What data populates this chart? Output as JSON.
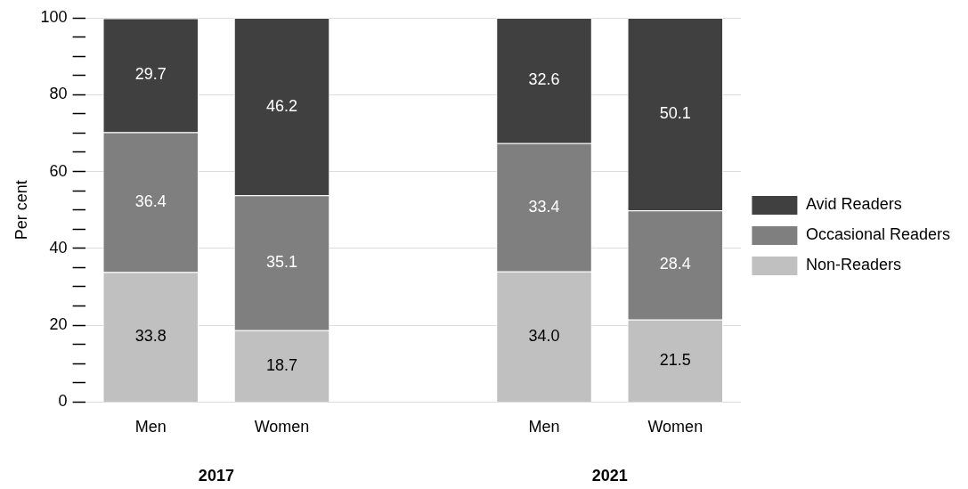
{
  "chart_data": {
    "type": "bar",
    "stacked": true,
    "ylabel": "Per cent",
    "categories": [
      "Men",
      "Women",
      null,
      "Men",
      "Women"
    ],
    "series": [
      {
        "name": "Non-Readers",
        "color": "#c0c0c0",
        "values": [
          33.8,
          18.7,
          null,
          34.0,
          21.5
        ],
        "value_labels": [
          "33.8",
          "18.7",
          null,
          "34.0",
          "21.5"
        ]
      },
      {
        "name": "Occasional Readers",
        "color": "#7f7f7f",
        "values": [
          36.4,
          35.1,
          null,
          33.4,
          28.4
        ],
        "value_labels": [
          "36.4",
          "35.1",
          null,
          "33.4",
          "28.4"
        ]
      },
      {
        "name": "Avid Readers",
        "color": "#404040",
        "values": [
          29.7,
          46.2,
          null,
          32.6,
          50.1
        ],
        "value_labels": [
          "29.7",
          "46.2",
          null,
          "32.6",
          "50.1"
        ]
      }
    ],
    "ylim": [
      0,
      100
    ],
    "yticks": [
      0,
      {
        "value": 5,
        "label": null
      },
      {
        "value": 10,
        "label": null
      },
      {
        "value": 15,
        "label": null
      },
      20,
      {
        "value": 25,
        "label": null
      },
      {
        "value": 30,
        "label": null
      },
      {
        "value": 35,
        "label": null
      },
      40,
      {
        "value": 45,
        "label": null
      },
      {
        "value": 50,
        "label": null
      },
      {
        "value": 55,
        "label": null
      },
      60,
      {
        "value": 65,
        "label": null
      },
      {
        "value": 70,
        "label": null
      },
      {
        "value": 75,
        "label": null
      },
      80,
      {
        "value": 85,
        "label": null
      },
      {
        "value": 90,
        "label": null
      },
      {
        "value": 95,
        "label": null
      },
      100
    ],
    "grid": "y",
    "legend": "right",
    "annotations": [
      "2017",
      "2021"
    ]
  }
}
